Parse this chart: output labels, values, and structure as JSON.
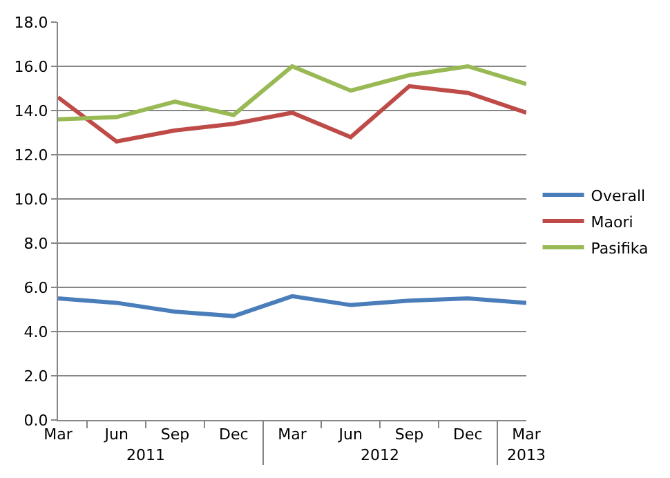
{
  "chart_data": {
    "type": "line",
    "categories": [
      "Mar",
      "Jun",
      "Sep",
      "Dec",
      "Mar",
      "Jun",
      "Sep",
      "Dec",
      "Mar"
    ],
    "annotations": [
      "2011",
      "2012",
      "2013"
    ],
    "series": [
      {
        "name": "Overall",
        "color": "#4a7ebb",
        "values": [
          5.5,
          5.3,
          4.9,
          4.7,
          5.6,
          5.2,
          5.4,
          5.5,
          5.3
        ]
      },
      {
        "name": "Maori",
        "color": "#be4b48",
        "values": [
          14.6,
          12.6,
          13.1,
          13.4,
          13.9,
          12.8,
          15.1,
          14.8,
          13.9
        ]
      },
      {
        "name": "Pasifika",
        "color": "#98b954",
        "values": [
          13.6,
          13.7,
          14.4,
          13.8,
          16.0,
          14.9,
          15.6,
          16.0,
          15.2
        ]
      }
    ],
    "ylim": [
      0,
      18
    ],
    "yticks": [
      {
        "value": 0,
        "label": "0.0"
      },
      {
        "value": 2,
        "label": "2.0"
      },
      {
        "value": 4,
        "label": "4.0"
      },
      {
        "value": 6,
        "label": "6.0"
      },
      {
        "value": 8,
        "label": "8.0"
      },
      {
        "value": 10,
        "label": "10.0"
      },
      {
        "value": 12,
        "label": "12.0"
      },
      {
        "value": 14,
        "label": "14.0"
      },
      {
        "value": 16,
        "label": "16.0"
      },
      {
        "value": 18,
        "label": "18.0"
      }
    ],
    "grid": "y",
    "legend": "right",
    "marker": "none",
    "line_style": "solid"
  }
}
